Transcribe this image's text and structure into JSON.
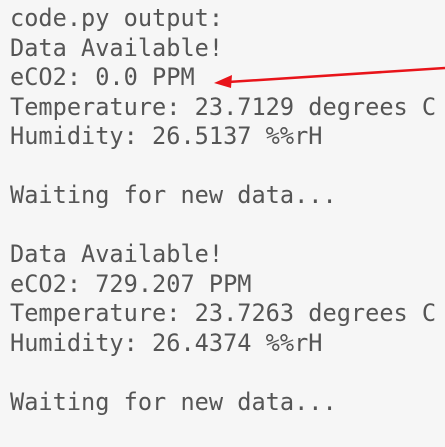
{
  "console": {
    "blocks": [
      [
        "code.py output:",
        "Data Available!",
        "eCO2: 0.0 PPM",
        "Temperature: 23.7129 degrees C",
        "Humidity: 26.5137 %%rH"
      ],
      [
        "Waiting for new data..."
      ],
      [
        "Data Available!",
        "eCO2: 729.207 PPM",
        "Temperature: 23.7263 degrees C",
        "Humidity: 26.4374 %%rH"
      ],
      [
        "Waiting for new data..."
      ]
    ]
  }
}
